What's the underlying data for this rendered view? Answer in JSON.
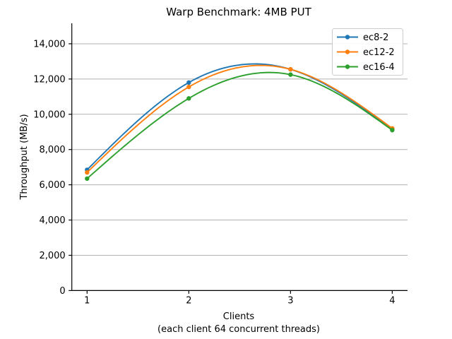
{
  "chart_data": {
    "type": "line",
    "title": "Warp Benchmark: 4MB PUT",
    "xlabel": "Clients",
    "xlabel_note": "(each client 64 concurrent threads)",
    "ylabel": "Throughput (MB/s)",
    "x": [
      1,
      2,
      3,
      4
    ],
    "xlim": [
      0.85,
      4.15
    ],
    "ylim": [
      0,
      15160
    ],
    "grid": "horizontal",
    "interpolation": "natural-cubic-spline",
    "xticks": {
      "values": [
        1,
        2,
        3,
        4
      ],
      "labels": [
        "1",
        "2",
        "3",
        "4"
      ]
    },
    "yticks": {
      "values": [
        0,
        2000,
        4000,
        6000,
        8000,
        10000,
        12000,
        14000
      ],
      "labels": [
        "0",
        "2,000",
        "4,000",
        "6,000",
        "8,000",
        "10,000",
        "12,000",
        "14,000"
      ]
    },
    "series": [
      {
        "name": "ec8-2",
        "color": "#1f77b4",
        "values": [
          6850,
          11800,
          12550,
          9150
        ]
      },
      {
        "name": "ec12-2",
        "color": "#ff7f0e",
        "values": [
          6700,
          11550,
          12550,
          9200
        ]
      },
      {
        "name": "ec16-4",
        "color": "#2ca02c",
        "values": [
          6350,
          10900,
          12250,
          9100
        ]
      }
    ],
    "legend": {
      "position": "upper right",
      "entries": [
        "ec8-2",
        "ec12-2",
        "ec16-4"
      ]
    },
    "colors": {
      "background": "#ffffff",
      "grid": "#b0b0b0",
      "axis": "#000000",
      "legend_border": "#cccccc",
      "legend_fill": "#ffffff"
    }
  }
}
